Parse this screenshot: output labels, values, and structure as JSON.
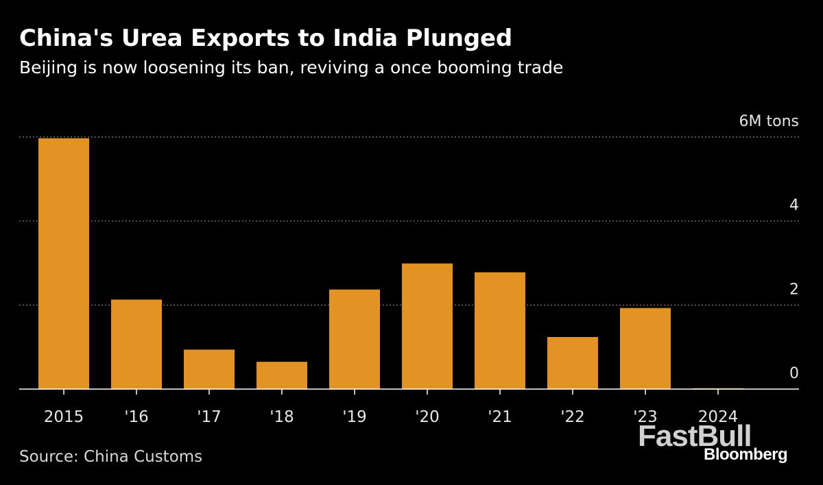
{
  "header": {
    "title": "China's Urea Exports to India Plunged",
    "subtitle": "Beijing is now loosening its ban, reviving a once booming trade"
  },
  "footer": {
    "source": "Source: China Customs",
    "watermark": "FastBull",
    "brand": "Bloomberg"
  },
  "colors": {
    "background": "#000000",
    "bar": "#E39224",
    "grid": "#8a8a8a",
    "text": "#ffffff"
  },
  "chart_data": {
    "type": "bar",
    "categories": [
      "2015",
      "'16",
      "'17",
      "'18",
      "'19",
      "'20",
      "'21",
      "'22",
      "'23",
      "2024"
    ],
    "values": [
      5.97,
      2.13,
      0.94,
      0.65,
      2.37,
      2.99,
      2.78,
      1.24,
      1.93,
      0.02
    ],
    "ylim": [
      0,
      6
    ],
    "yticks": [
      0,
      2,
      4,
      6
    ],
    "ytick_labels": [
      "0",
      "2",
      "4",
      "6M tons"
    ],
    "grid": true,
    "legend": "none"
  }
}
